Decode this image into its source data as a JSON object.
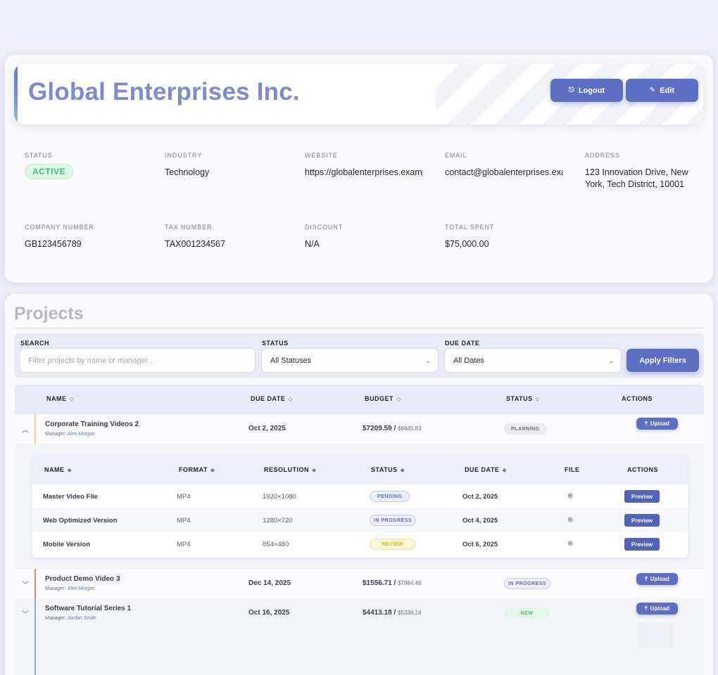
{
  "company": {
    "name": "Global Enterprises Inc.",
    "logout_label": "Logout",
    "edit_label": "Edit",
    "fields": {
      "status": {
        "label": "STATUS",
        "value": "ACTIVE"
      },
      "industry": {
        "label": "INDUSTRY",
        "value": "Technology"
      },
      "website": {
        "label": "WEBSITE",
        "value": "https://globalenterprises.example.com"
      },
      "email": {
        "label": "EMAIL",
        "value": "contact@globalenterprises.example.com"
      },
      "address": {
        "label": "ADDRESS",
        "value": "123 Innovation Drive, New York, Tech District, 10001"
      },
      "company_number": {
        "label": "COMPANY NUMBER",
        "value": "GB123456789"
      },
      "tax_number": {
        "label": "TAX NUMBER",
        "value": "TAX001234567"
      },
      "discount": {
        "label": "DISCOUNT",
        "value": "N/A"
      },
      "total_spent": {
        "label": "TOTAL SPENT",
        "value": "$75,000.00"
      }
    }
  },
  "projects": {
    "title": "Projects",
    "filters": {
      "search_label": "SEARCH",
      "search_placeholder": "Filter projects by name or manager...",
      "status_label": "STATUS",
      "status_value": "All Statuses",
      "due_label": "DUE DATE",
      "due_value": "All Dates",
      "apply_label": "Apply Filters"
    },
    "columns": {
      "name": "NAME",
      "due_date": "DUE DATE",
      "budget": "BUDGET",
      "status": "STATUS",
      "actions": "ACTIONS"
    },
    "manager_prefix": "Manager:",
    "upload_label": "Upload",
    "rows": [
      {
        "name": "Corporate Training Videos 2",
        "manager": "Alex Morgan",
        "due": "Oct 2, 2025",
        "budget": "$7209.59",
        "budget_sub": "$6645.83",
        "status": "PLANNING",
        "accent": "#f0d37a"
      },
      {
        "name": "Product Demo Video 3",
        "manager": "Alex Morgan",
        "due": "Dec 14, 2025",
        "budget": "$1556.71",
        "budget_sub": "$7984.49",
        "status": "IN PROGRESS",
        "accent": "#e28a8a"
      },
      {
        "name": "Software Tutorial Series 1",
        "manager": "Jordan Smith",
        "due": "Oct 16, 2025",
        "budget": "$4413.18",
        "budget_sub": "$5338.14",
        "status": "NEW",
        "accent": "#9aa6da"
      }
    ],
    "deliverables": {
      "columns": {
        "name": "NAME",
        "format": "FORMAT",
        "resolution": "RESOLUTION",
        "status": "STATUS",
        "due_date": "DUE DATE",
        "file": "FILE",
        "actions": "ACTIONS"
      },
      "preview_label": "Preview",
      "rows": [
        {
          "name": "Master Video File",
          "format": "MP4",
          "resolution": "1920×1080",
          "status": "PENDING",
          "due": "Oct 2, 2025"
        },
        {
          "name": "Web Optimized Version",
          "format": "MP4",
          "resolution": "1280×720",
          "status": "IN PROGRESS",
          "due": "Oct 4, 2025"
        },
        {
          "name": "Mobile Version",
          "format": "MP4",
          "resolution": "854×480",
          "status": "REVIEW",
          "due": "Oct 6, 2025"
        }
      ]
    }
  },
  "icons": {
    "logout": "logout-icon",
    "edit": "edit-icon",
    "upload": "upload-icon",
    "file": "file-circle-icon",
    "sort": "sort-icon",
    "expand": "chevron-icon"
  },
  "colors": {
    "accent": "#5d6fc3",
    "title": "#7b8bce",
    "active": "#3ec271"
  }
}
